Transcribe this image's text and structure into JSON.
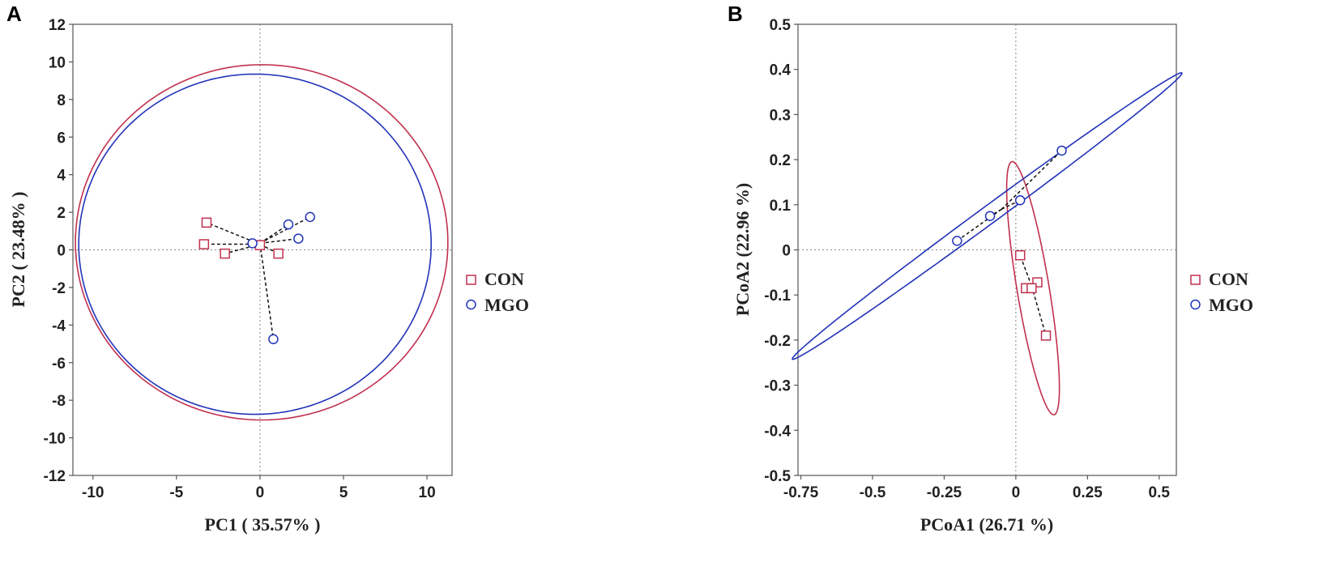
{
  "colors": {
    "con": "#c0304e",
    "mgo": "#2233b8",
    "axis": "#555555"
  },
  "chart_data": [
    {
      "id": "A",
      "panel_label": "A",
      "type": "scatter",
      "xlabel": "PC1 ( 35.57% )",
      "ylabel": "PC2 ( 23.48% )",
      "xlim": [
        -11.2,
        11.5
      ],
      "ylim": [
        -12,
        12
      ],
      "xticks": [
        -10,
        -5,
        0,
        5,
        10
      ],
      "xtick_labels": [
        "-10",
        "-5",
        "0",
        "5",
        "10"
      ],
      "yticks": [
        -12,
        -10,
        -8,
        -6,
        -4,
        -2,
        0,
        2,
        4,
        6,
        8,
        10,
        12
      ],
      "ytick_labels": [
        "-12",
        "-10",
        "-8",
        "-6",
        "-4",
        "-2",
        "0",
        "2",
        "4",
        "6",
        "8",
        "10",
        "12"
      ],
      "legend": [
        "CON",
        "MGO"
      ],
      "series": [
        {
          "name": "CON",
          "centroid": [
            0.0,
            0.3
          ],
          "points": [
            [
              -3.2,
              1.45
            ],
            [
              -3.35,
              0.3
            ],
            [
              -2.1,
              -0.2
            ],
            [
              1.1,
              -0.2
            ],
            [
              0.0,
              0.25
            ]
          ],
          "ellipse": {
            "cx": 0.1,
            "cy": 0.4,
            "rx": 11.15,
            "ry": 9.45,
            "angle": 0
          }
        },
        {
          "name": "MGO",
          "centroid": [
            0.0,
            0.35
          ],
          "points": [
            [
              3.0,
              1.75
            ],
            [
              1.7,
              1.35
            ],
            [
              2.3,
              0.6
            ],
            [
              -0.45,
              0.35
            ],
            [
              0.8,
              -4.75
            ]
          ],
          "ellipse": {
            "cx": -0.3,
            "cy": 0.3,
            "rx": 10.55,
            "ry": 9.05,
            "angle": 0
          }
        }
      ]
    },
    {
      "id": "B",
      "panel_label": "B",
      "type": "scatter",
      "xlabel": "PCoA1 (26.71 %)",
      "ylabel": "PCoA2 (22.96 %)",
      "xlim": [
        -0.76,
        0.56
      ],
      "ylim": [
        -0.5,
        0.5
      ],
      "xticks": [
        -0.75,
        -0.5,
        -0.25,
        0,
        0.25,
        0.5
      ],
      "xtick_labels": [
        "-0.75",
        "-0.5",
        "-0.25",
        "0",
        "0.25",
        "0.5"
      ],
      "yticks": [
        -0.5,
        -0.4,
        -0.3,
        -0.2,
        -0.1,
        0,
        0.1,
        0.2,
        0.3,
        0.4,
        0.5
      ],
      "ytick_labels": [
        "-0.5",
        "-0.4",
        "-0.3",
        "-0.2",
        "-0.1",
        "0",
        "0.1",
        "0.2",
        "0.3",
        "0.4",
        "0.5"
      ],
      "legend": [
        "CON",
        "MGO"
      ],
      "series": [
        {
          "name": "CON",
          "centroid": [
            0.055,
            -0.08
          ],
          "points": [
            [
              0.015,
              -0.012
            ],
            [
              0.035,
              -0.085
            ],
            [
              0.075,
              -0.072
            ],
            [
              0.105,
              -0.19
            ],
            [
              0.055,
              -0.085
            ]
          ],
          "ellipse": {
            "cx": 0.06,
            "cy": -0.085,
            "rx": 0.055,
            "ry": 0.29,
            "angle": 15
          }
        },
        {
          "name": "MGO",
          "centroid": [
            -0.05,
            0.09
          ],
          "points": [
            [
              0.16,
              0.22
            ],
            [
              0.015,
              0.11
            ],
            [
              -0.09,
              0.075
            ],
            [
              -0.205,
              0.02
            ]
          ],
          "ellipse": {
            "cx": -0.1,
            "cy": 0.075,
            "rx": 0.75,
            "ry": 0.022,
            "angle": 25
          }
        }
      ]
    }
  ]
}
